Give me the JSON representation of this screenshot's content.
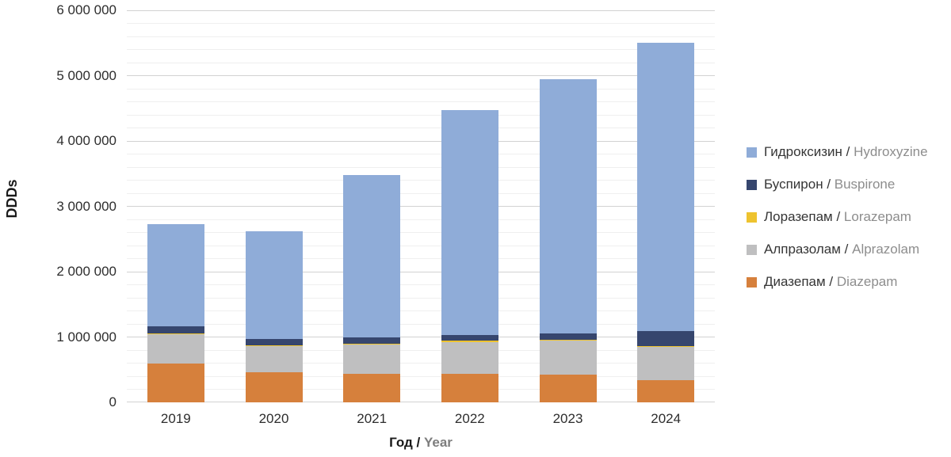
{
  "page": {
    "background": "#ffffff"
  },
  "chart_data": {
    "type": "bar",
    "stacked": true,
    "title": "",
    "ylabel": "DDDs",
    "xlabel_ru": "Год",
    "xlabel_separator": "/",
    "xlabel_en": "Year",
    "ylim": [
      0,
      6000000
    ],
    "y_major_step": 1000000,
    "y_minor_step": 200000,
    "y_tick_labels": [
      "0",
      "1 000 000",
      "2 000 000",
      "3 000 000",
      "4 000 000",
      "5 000 000",
      "6 000 000"
    ],
    "grid": "horizontal",
    "legend_position": "right",
    "legend_separator": "/",
    "categories": [
      "2019",
      "2020",
      "2021",
      "2022",
      "2023",
      "2024"
    ],
    "series": [
      {
        "name_ru": "Диазепам",
        "name_en": "Diazepam",
        "color": "#D6803C",
        "values": [
          595000,
          460000,
          440000,
          440000,
          425000,
          340000
        ]
      },
      {
        "name_ru": "Алпразолам",
        "name_en": "Alprazolam",
        "color": "#BFBFC0",
        "values": [
          445000,
          405000,
          445000,
          480000,
          520000,
          510000
        ]
      },
      {
        "name_ru": "Лоразепам",
        "name_en": "Lorazepam",
        "color": "#EEC32F",
        "values": [
          10000,
          10000,
          10000,
          20000,
          10000,
          10000
        ]
      },
      {
        "name_ru": "Буспирон",
        "name_en": "Buspirone",
        "color": "#36466E",
        "values": [
          110000,
          90000,
          105000,
          90000,
          105000,
          230000
        ]
      },
      {
        "name_ru": "Гидроксизин",
        "name_en": "Hydroxyzine",
        "color": "#8FACD8",
        "values": [
          1570000,
          1655000,
          2480000,
          3440000,
          3890000,
          4410000
        ]
      }
    ],
    "totals": [
      2730000,
      2620000,
      3480000,
      4470000,
      4950000,
      5500000
    ]
  }
}
